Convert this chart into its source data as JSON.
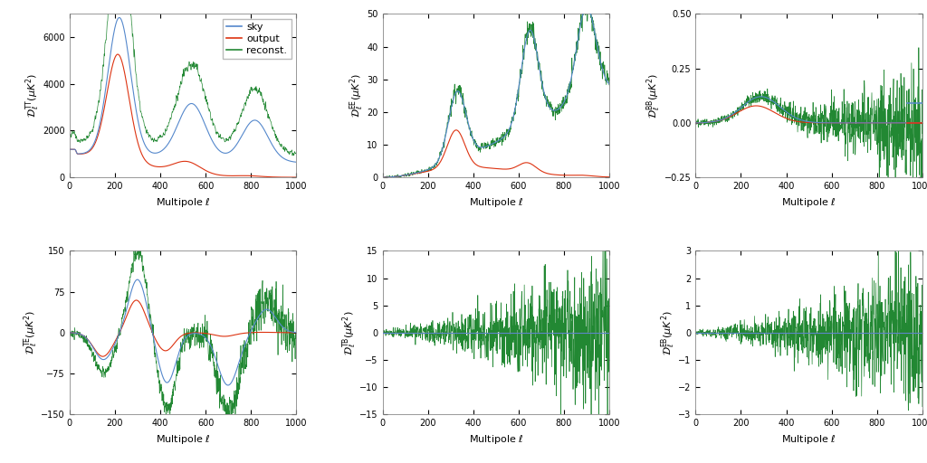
{
  "bg_color": "#ffffff",
  "colors": {
    "sky": "#5588cc",
    "output": "#dd3311",
    "reconst": "#228833"
  },
  "xlim": [
    0,
    1000
  ],
  "panels": [
    {
      "ylabel": "$\\mathcal{D}_\\ell^{\\mathrm{TT}}(\\mu K^2)$",
      "ylim": [
        0,
        7000
      ],
      "yticks": [
        0,
        2000,
        4000,
        6000
      ],
      "xlabel": "Multipole $\\ell$",
      "row": 0,
      "col": 0
    },
    {
      "ylabel": "$\\mathcal{D}_\\ell^{\\mathrm{EE}}(\\mu K^2)$",
      "ylim": [
        0,
        50
      ],
      "yticks": [
        0,
        10,
        20,
        30,
        40,
        50
      ],
      "xlabel": "Multipole $\\ell$",
      "row": 0,
      "col": 1
    },
    {
      "ylabel": "$\\mathcal{D}_\\ell^{\\mathrm{BB}}(\\mu K^2)$",
      "ylim": [
        -0.25,
        0.5
      ],
      "yticks": [
        -0.25,
        0,
        0.25,
        0.5
      ],
      "xlabel": "Multipole $\\ell$",
      "row": 0,
      "col": 2
    },
    {
      "ylabel": "$\\mathcal{D}_\\ell^{\\mathrm{TE}}(\\mu K^2)$",
      "ylim": [
        -150,
        150
      ],
      "yticks": [
        -150,
        -75,
        0,
        75,
        150
      ],
      "xlabel": "Multipole $\\ell$",
      "row": 1,
      "col": 0
    },
    {
      "ylabel": "$\\mathcal{D}_\\ell^{\\mathrm{TB}}(\\mu K^2)$",
      "ylim": [
        -15,
        15
      ],
      "yticks": [
        -15,
        -10,
        -5,
        0,
        5,
        10,
        15
      ],
      "xlabel": "Multipole $\\ell$",
      "row": 1,
      "col": 1
    },
    {
      "ylabel": "$\\mathcal{D}_\\ell^{\\mathrm{EB}}(\\mu K^2)$",
      "ylim": [
        -3,
        3
      ],
      "yticks": [
        -3,
        -2,
        -1,
        0,
        1,
        2,
        3
      ],
      "xlabel": "Multipole $\\ell$",
      "row": 1,
      "col": 2
    }
  ],
  "legend": {
    "sky": "sky",
    "output": "output",
    "reconst": "reconst."
  }
}
